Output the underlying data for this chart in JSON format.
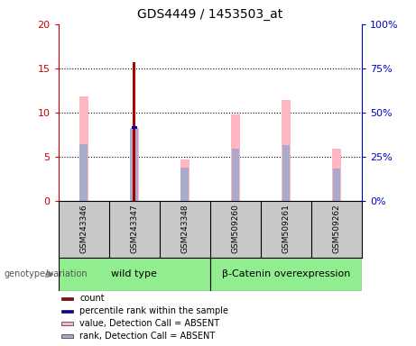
{
  "title": "GDS4449 / 1453503_at",
  "samples": [
    "GSM243346",
    "GSM243347",
    "GSM243348",
    "GSM509260",
    "GSM509261",
    "GSM509262"
  ],
  "group_defs": [
    {
      "name": "wild type",
      "indices": [
        0,
        1,
        2
      ]
    },
    {
      "name": "β-Catenin overexpression",
      "indices": [
        3,
        4,
        5
      ]
    }
  ],
  "count_values": [
    0,
    15.7,
    0,
    0,
    0,
    0
  ],
  "count_color": "#AA0000",
  "percentile_rank_value": 8.3,
  "percentile_rank_index": 1,
  "percentile_rank_color": "#0000BB",
  "value_absent_values": [
    11.8,
    8.2,
    4.7,
    9.8,
    11.4,
    5.9
  ],
  "value_absent_color": "#FFB6C1",
  "rank_absent_values": [
    6.4,
    8.15,
    3.7,
    5.9,
    6.3,
    3.65
  ],
  "rank_absent_color": "#AAAACC",
  "ylim_left": [
    0,
    20
  ],
  "ylim_right": [
    0,
    100
  ],
  "yticks_left": [
    0,
    5,
    10,
    15,
    20
  ],
  "yticks_right": [
    0,
    25,
    50,
    75,
    100
  ],
  "yticklabels_left": [
    "0",
    "5",
    "10",
    "15",
    "20"
  ],
  "yticklabels_right": [
    "0%",
    "25%",
    "50%",
    "75%",
    "100%"
  ],
  "left_axis_color": "#CC0000",
  "right_axis_color": "#0000CC",
  "green_color": "#90EE90",
  "gray_color": "#C8C8C8",
  "genotype_label": "genotype/variation",
  "legend_items": [
    {
      "label": "count",
      "color": "#AA0000"
    },
    {
      "label": "percentile rank within the sample",
      "color": "#0000BB"
    },
    {
      "label": "value, Detection Call = ABSENT",
      "color": "#FFB6C1"
    },
    {
      "label": "rank, Detection Call = ABSENT",
      "color": "#AAAACC"
    }
  ],
  "thin_bar_width": 0.06,
  "value_bar_width": 0.18
}
